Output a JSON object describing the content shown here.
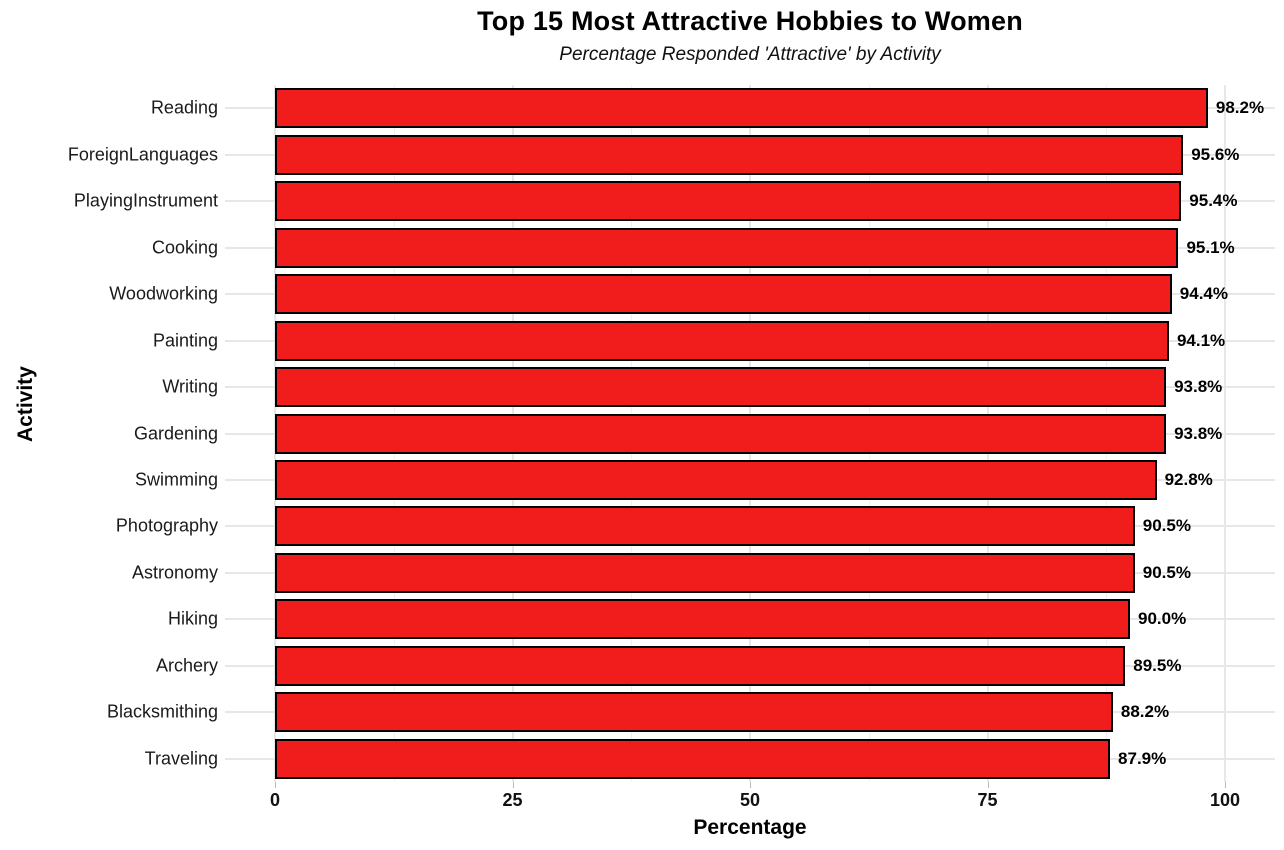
{
  "chart_data": {
    "type": "bar",
    "orientation": "horizontal",
    "title": "Top 15 Most Attractive Hobbies to Women",
    "subtitle": "Percentage Responded 'Attractive' by Activity",
    "xlabel": "Percentage",
    "ylabel": "Activity",
    "categories": [
      "Reading",
      "ForeignLanguages",
      "PlayingInstrument",
      "Cooking",
      "Woodworking",
      "Painting",
      "Writing",
      "Gardening",
      "Swimming",
      "Photography",
      "Astronomy",
      "Hiking",
      "Archery",
      "Blacksmithing",
      "Traveling"
    ],
    "values": [
      98.2,
      95.6,
      95.4,
      95.1,
      94.4,
      94.1,
      93.8,
      93.8,
      92.8,
      90.5,
      90.5,
      90.0,
      89.5,
      88.2,
      87.9
    ],
    "value_labels": [
      "98.2%",
      "95.6%",
      "95.4%",
      "95.1%",
      "94.4%",
      "94.1%",
      "93.8%",
      "93.8%",
      "92.8%",
      "90.5%",
      "90.5%",
      "90.0%",
      "89.5%",
      "88.2%",
      "87.9%"
    ],
    "xlim": [
      0,
      100
    ],
    "xticks": [
      0,
      25,
      50,
      75,
      100
    ],
    "grid": true,
    "legend": "none",
    "colors": {
      "bar_fill": "#f11c1c",
      "bar_border": "#000000",
      "gridline_major": "#e7e7e7",
      "gridline_minor": "#f0f0f0",
      "text": "#000000"
    }
  }
}
